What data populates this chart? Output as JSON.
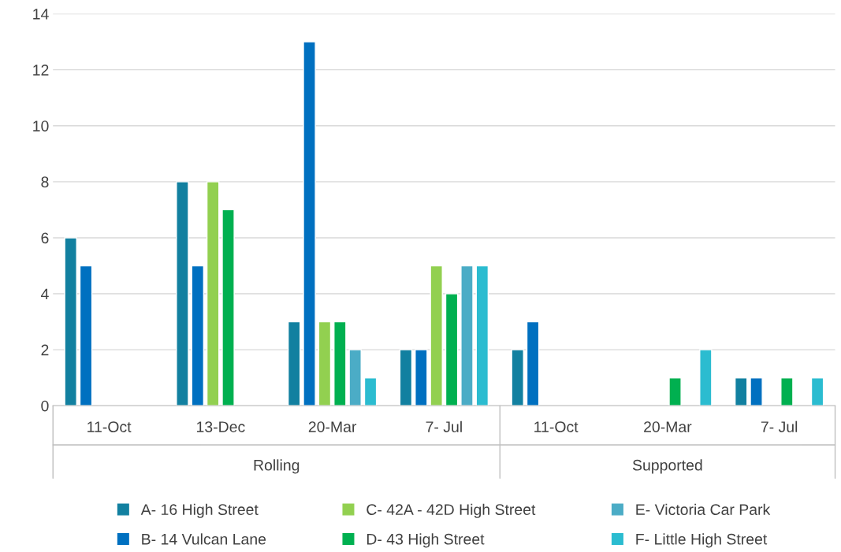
{
  "chart_data": {
    "type": "bar",
    "categories": [
      "11-Oct",
      "13-Dec",
      "20-Mar",
      "7- Jul",
      "11-Oct",
      "20-Mar",
      "7- Jul"
    ],
    "annotations": [
      "Rolling",
      "Supported"
    ],
    "series": [
      {
        "name": "A- 16 High Street",
        "color": "#1280a0",
        "values": [
          6,
          8,
          3,
          2,
          2,
          null,
          1
        ]
      },
      {
        "name": "B- 14 Vulcan Lane",
        "color": "#0070c0",
        "values": [
          5,
          5,
          13,
          2,
          3,
          null,
          1
        ]
      },
      {
        "name": "C- 42A - 42D High Street",
        "color": "#92d050",
        "values": [
          null,
          8,
          3,
          5,
          null,
          null,
          null
        ]
      },
      {
        "name": "D- 43 High Street",
        "color": "#00b050",
        "values": [
          null,
          7,
          3,
          4,
          null,
          1,
          1
        ]
      },
      {
        "name": "E- Victoria Car Park",
        "color": "#4bacc6",
        "values": [
          null,
          null,
          2,
          5,
          null,
          null,
          null
        ]
      },
      {
        "name": "F- Little High Street",
        "color": "#2bbcd0",
        "values": [
          null,
          null,
          1,
          5,
          null,
          2,
          1
        ]
      }
    ],
    "ylim": [
      0,
      14
    ],
    "yticks": [
      0,
      2,
      4,
      6,
      8,
      10,
      12,
      14
    ],
    "grid": "y",
    "legend": "bottom"
  }
}
